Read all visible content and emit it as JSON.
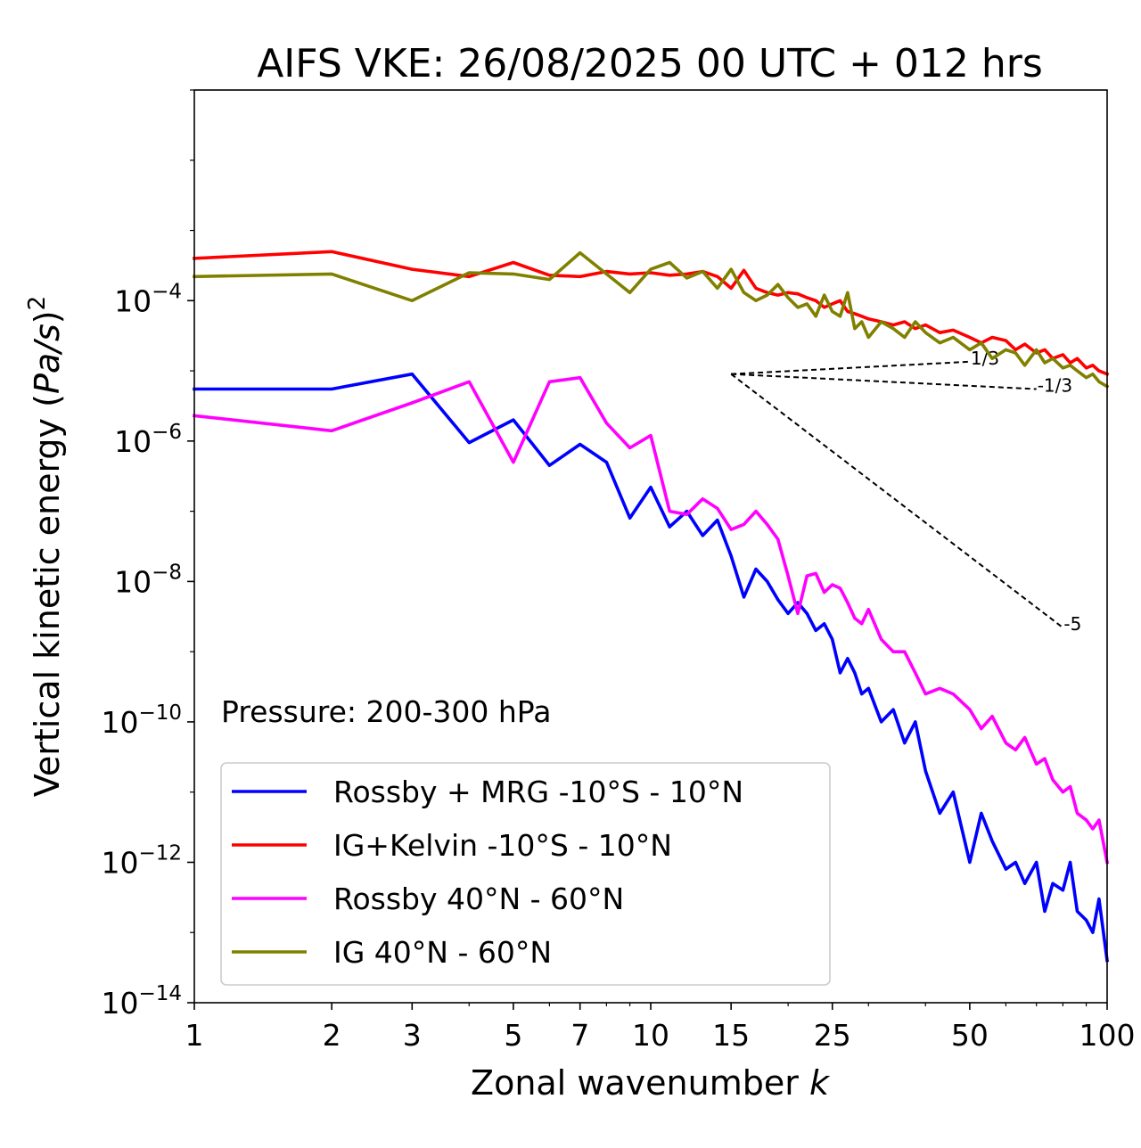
{
  "chart_data": {
    "type": "line",
    "title": "AIFS VKE: 26/08/2025 00 UTC + 012 hrs",
    "xlabel": "Zonal wavenumber ",
    "xlabel_var": "k",
    "ylabel": "Vertical kinetic energy (",
    "ylabel_var": "Pa/s",
    "ylabel_tail": ")",
    "ylabel_sup": "2",
    "xscale": "log",
    "yscale": "log",
    "xlim": [
      1,
      100
    ],
    "ylim": [
      1e-14,
      0.1
    ],
    "x_ticks": [
      {
        "value": 1,
        "label": "1"
      },
      {
        "value": 2,
        "label": "2"
      },
      {
        "value": 3,
        "label": "3"
      },
      {
        "value": 5,
        "label": "5"
      },
      {
        "value": 7,
        "label": "7"
      },
      {
        "value": 10,
        "label": "10"
      },
      {
        "value": 15,
        "label": "15"
      },
      {
        "value": 25,
        "label": "25"
      },
      {
        "value": 50,
        "label": "50"
      },
      {
        "value": 100,
        "label": "100"
      }
    ],
    "y_ticks": [
      {
        "value": 1e-14,
        "base": "10",
        "exp": "−14"
      },
      {
        "value": 1e-12,
        "base": "10",
        "exp": "−12"
      },
      {
        "value": 1e-10,
        "base": "10",
        "exp": "−10"
      },
      {
        "value": 1e-08,
        "base": "10",
        "exp": "−8"
      },
      {
        "value": 1e-06,
        "base": "10",
        "exp": "−6"
      },
      {
        "value": 0.0001,
        "base": "10",
        "exp": "−4"
      }
    ],
    "annotation": "Pressure: 200-300 hPa",
    "legend_position": "lower-left",
    "series": [
      {
        "name": "Rossby + MRG -10°S - 10°N",
        "color": "#0000ff",
        "x": [
          1,
          2,
          3,
          4,
          5,
          6,
          7,
          8,
          9,
          10,
          11,
          12,
          13,
          14,
          15,
          16,
          17,
          18,
          19,
          20,
          21,
          22,
          23,
          24,
          25,
          26,
          27,
          28,
          29,
          30,
          32,
          34,
          36,
          38,
          40,
          43,
          46,
          50,
          53,
          56,
          60,
          63,
          66,
          70,
          73,
          76,
          80,
          83,
          86,
          90,
          93,
          96,
          100
        ],
        "y": [
          5.5e-06,
          5.5e-06,
          9e-06,
          9.5e-07,
          2e-06,
          4.5e-07,
          9e-07,
          5e-07,
          8e-08,
          2.2e-07,
          6e-08,
          1e-07,
          4.5e-08,
          7.5e-08,
          2.3e-08,
          6e-09,
          1.5e-08,
          1e-08,
          5.5e-09,
          3.5e-09,
          5e-09,
          3.5e-09,
          2e-09,
          2.5e-09,
          1.5e-09,
          5e-10,
          8e-10,
          5e-10,
          2.5e-10,
          3e-10,
          1e-10,
          1.5e-10,
          5e-11,
          1e-10,
          2e-11,
          5e-12,
          1e-11,
          1e-12,
          5e-12,
          2e-12,
          8e-13,
          1e-12,
          5e-13,
          1e-12,
          2e-13,
          5e-13,
          4e-13,
          1e-12,
          2e-13,
          1.5e-13,
          1e-13,
          3e-13,
          4e-14
        ]
      },
      {
        "name": "IG+Kelvin -10°S - 10°N",
        "color": "#ff0000",
        "x": [
          1,
          2,
          3,
          4,
          5,
          6,
          7,
          8,
          9,
          10,
          11,
          12,
          13,
          14,
          15,
          16,
          17,
          18,
          19,
          20,
          21,
          22,
          23,
          24,
          25,
          26,
          27,
          28,
          29,
          30,
          32,
          34,
          36,
          38,
          40,
          43,
          46,
          50,
          53,
          56,
          60,
          63,
          66,
          70,
          73,
          76,
          80,
          83,
          86,
          90,
          93,
          96,
          100
        ],
        "y": [
          0.0004,
          0.0005,
          0.00028,
          0.00022,
          0.00035,
          0.00023,
          0.00022,
          0.00026,
          0.00024,
          0.00025,
          0.00023,
          0.00024,
          0.00026,
          0.00022,
          0.00015,
          0.00027,
          0.00015,
          0.00013,
          0.00012,
          0.00013,
          0.000125,
          0.00011,
          0.0001,
          8e-05,
          9e-05,
          0.0001,
          7e-05,
          6.5e-05,
          6e-05,
          5.5e-05,
          5e-05,
          4.5e-05,
          5e-05,
          4e-05,
          4.5e-05,
          3.5e-05,
          3.8e-05,
          3e-05,
          2.5e-05,
          3e-05,
          2.7e-05,
          2e-05,
          2.4e-05,
          1.8e-05,
          2e-05,
          1.5e-05,
          1.7e-05,
          1.3e-05,
          1.5e-05,
          1.1e-05,
          1.2e-05,
          1e-05,
          9e-06
        ]
      },
      {
        "name": "Rossby 40°N - 60°N",
        "color": "#ff00ff",
        "x": [
          1,
          2,
          3,
          4,
          5,
          6,
          7,
          8,
          9,
          10,
          11,
          12,
          13,
          14,
          15,
          16,
          17,
          18,
          19,
          20,
          21,
          22,
          23,
          24,
          25,
          26,
          27,
          28,
          29,
          30,
          32,
          34,
          36,
          38,
          40,
          43,
          46,
          50,
          53,
          56,
          60,
          63,
          66,
          70,
          73,
          76,
          80,
          83,
          86,
          90,
          93,
          96,
          100
        ],
        "y": [
          2.3e-06,
          1.4e-06,
          3.5e-06,
          7e-06,
          5e-07,
          7e-06,
          8e-06,
          1.8e-06,
          8e-07,
          1.2e-06,
          1e-07,
          9e-08,
          1.5e-07,
          1.1e-07,
          5.5e-08,
          6.5e-08,
          1e-07,
          6.5e-08,
          4e-08,
          1.2e-08,
          3.5e-09,
          1.2e-08,
          1.3e-08,
          7e-09,
          9e-09,
          8e-09,
          5e-09,
          3e-09,
          2.5e-09,
          4e-09,
          1.5e-09,
          1e-09,
          1e-09,
          5e-10,
          2.5e-10,
          3e-10,
          2.5e-10,
          1.5e-10,
          8e-11,
          1.2e-10,
          5e-11,
          4e-11,
          6e-11,
          2.5e-11,
          3e-11,
          1.5e-11,
          1e-11,
          1.2e-11,
          5e-12,
          4e-12,
          3e-12,
          4e-12,
          1e-12
        ]
      },
      {
        "name": "IG 40°N - 60°N",
        "color": "#808000",
        "x": [
          1,
          2,
          3,
          4,
          5,
          6,
          7,
          8,
          9,
          10,
          11,
          12,
          13,
          14,
          15,
          16,
          17,
          18,
          19,
          20,
          21,
          22,
          23,
          24,
          25,
          26,
          27,
          28,
          29,
          30,
          32,
          34,
          36,
          38,
          40,
          43,
          46,
          50,
          53,
          56,
          60,
          63,
          66,
          70,
          73,
          76,
          80,
          83,
          86,
          90,
          93,
          96,
          100
        ],
        "y": [
          0.00022,
          0.00024,
          0.0001,
          0.00025,
          0.00024,
          0.0002,
          0.00048,
          0.00024,
          0.00013,
          0.00028,
          0.00035,
          0.00021,
          0.00026,
          0.00015,
          0.00028,
          0.00013,
          0.0001,
          0.00012,
          0.00017,
          0.00011,
          8e-05,
          9e-05,
          6e-05,
          0.00012,
          7e-05,
          6e-05,
          0.00013,
          4e-05,
          5e-05,
          3e-05,
          5e-05,
          4e-05,
          3e-05,
          5e-05,
          3.5e-05,
          2.5e-05,
          3e-05,
          2e-05,
          2.5e-05,
          1.5e-05,
          2e-05,
          1.8e-05,
          1.2e-05,
          2e-05,
          1.3e-05,
          1.5e-05,
          1.1e-05,
          1.2e-05,
          1e-05,
          8e-06,
          9e-06,
          7e-06,
          6e-06
        ]
      }
    ],
    "reference_lines": [
      {
        "label": "1/3",
        "x": [
          15,
          50
        ],
        "y": [
          9e-06,
          1.35e-05
        ]
      },
      {
        "label": "-1/3",
        "x": [
          15,
          70
        ],
        "y": [
          9e-06,
          5.5e-06
        ]
      },
      {
        "label": "-5",
        "x": [
          15,
          80
        ],
        "y": [
          9e-06,
          2.2e-09
        ]
      }
    ]
  }
}
